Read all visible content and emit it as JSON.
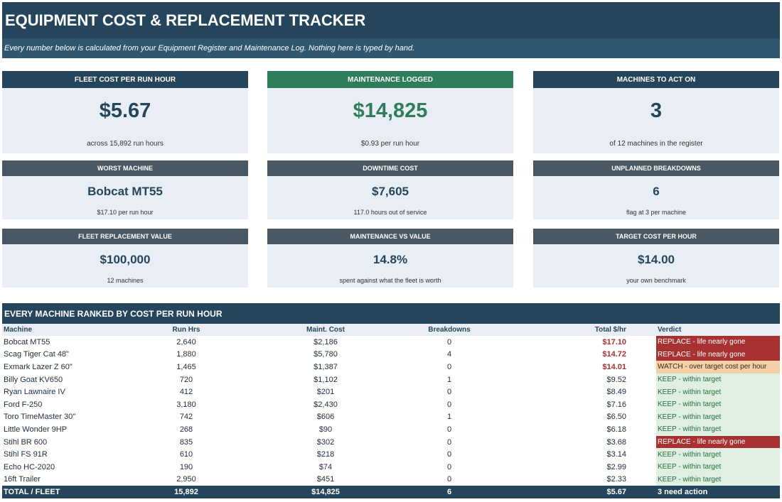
{
  "header": {
    "title": "EQUIPMENT COST & REPLACEMENT TRACKER",
    "subtitle": "Every number below is calculated from your Equipment Register and Maintenance Log. Nothing here is typed by hand."
  },
  "cards": [
    {
      "label": "FLEET COST PER RUN HOUR",
      "value": "$5.67",
      "note": "across 15,892 run hours",
      "value_color": "#25455c"
    },
    {
      "label": "MAINTENANCE LOGGED",
      "value": "$14,825",
      "note": "$0.93 per run hour",
      "value_color": "#2e7d5b"
    },
    {
      "label": "MACHINES TO ACT ON",
      "value": "3",
      "note": "of 12 machines in the register",
      "value_color": "#25455c"
    },
    {
      "label": "WORST MACHINE",
      "value": "Bobcat MT55",
      "note": "$17.10 per run hour"
    },
    {
      "label": "DOWNTIME COST",
      "value": "$7,605",
      "note": "117.0 hours out of service"
    },
    {
      "label": "UNPLANNED BREAKDOWNS",
      "value": "6",
      "note": "flag at 3 per machine"
    },
    {
      "label": "FLEET REPLACEMENT VALUE",
      "value": "$100,000",
      "note": "12 machines"
    },
    {
      "label": "MAINTENANCE VS VALUE",
      "value": "14.8%",
      "note": "spent against what the fleet is worth"
    },
    {
      "label": "TARGET COST PER HOUR",
      "value": "$14.00",
      "note": "your own benchmark"
    }
  ],
  "table": {
    "title": "EVERY MACHINE RANKED BY COST PER RUN HOUR",
    "columns": [
      "Machine",
      "Run Hrs",
      "Maint. Cost",
      "Breakdowns",
      "Total $/hr",
      "Verdict"
    ],
    "rows": [
      {
        "machine": "Bobcat MT55",
        "hrs": "2,640",
        "cost": "$2,186",
        "bd": "0",
        "total": "$17.10",
        "verdict": "REPLACE - life nearly gone",
        "over": true,
        "kind": "replace"
      },
      {
        "machine": "Scag Tiger Cat 48\"",
        "hrs": "1,880",
        "cost": "$5,780",
        "bd": "4",
        "total": "$14.72",
        "verdict": "REPLACE - life nearly gone",
        "over": true,
        "kind": "replace"
      },
      {
        "machine": "Exmark Lazer Z 60\"",
        "hrs": "1,465",
        "cost": "$1,387",
        "bd": "0",
        "total": "$14.01",
        "verdict": "WATCH - over target cost per hour",
        "over": true,
        "kind": "watch"
      },
      {
        "machine": "Billy Goat KV650",
        "hrs": "720",
        "cost": "$1,102",
        "bd": "1",
        "total": "$9.52",
        "verdict": "KEEP - within target",
        "over": false,
        "kind": "keep"
      },
      {
        "machine": "Ryan Lawnaire IV",
        "hrs": "412",
        "cost": "$201",
        "bd": "0",
        "total": "$8.49",
        "verdict": "KEEP - within target",
        "over": false,
        "kind": "keep"
      },
      {
        "machine": "Ford F-250",
        "hrs": "3,180",
        "cost": "$2,430",
        "bd": "0",
        "total": "$7.16",
        "verdict": "KEEP - within target",
        "over": false,
        "kind": "keep"
      },
      {
        "machine": "Toro TimeMaster 30\"",
        "hrs": "742",
        "cost": "$606",
        "bd": "1",
        "total": "$6.50",
        "verdict": "KEEP - within target",
        "over": false,
        "kind": "keep"
      },
      {
        "machine": "Little Wonder 9HP",
        "hrs": "268",
        "cost": "$90",
        "bd": "0",
        "total": "$6.18",
        "verdict": "KEEP - within target",
        "over": false,
        "kind": "keep"
      },
      {
        "machine": "Stihl BR 600",
        "hrs": "835",
        "cost": "$302",
        "bd": "0",
        "total": "$3.68",
        "verdict": "REPLACE - life nearly gone",
        "over": false,
        "kind": "replace"
      },
      {
        "machine": "Stihl FS 91R",
        "hrs": "610",
        "cost": "$218",
        "bd": "0",
        "total": "$3.14",
        "verdict": "KEEP - within target",
        "over": false,
        "kind": "keep"
      },
      {
        "machine": "Echo HC-2020",
        "hrs": "190",
        "cost": "$74",
        "bd": "0",
        "total": "$2.99",
        "verdict": "KEEP - within target",
        "over": false,
        "kind": "keep"
      },
      {
        "machine": "16ft Trailer",
        "hrs": "2,950",
        "cost": "$451",
        "bd": "0",
        "total": "$2.33",
        "verdict": "KEEP - within target",
        "over": false,
        "kind": "keep"
      }
    ],
    "total": {
      "label": "TOTAL / FLEET",
      "hrs": "15,892",
      "cost": "$14,825",
      "bd": "6",
      "total": "$5.67",
      "verdict": "3 need action"
    }
  }
}
